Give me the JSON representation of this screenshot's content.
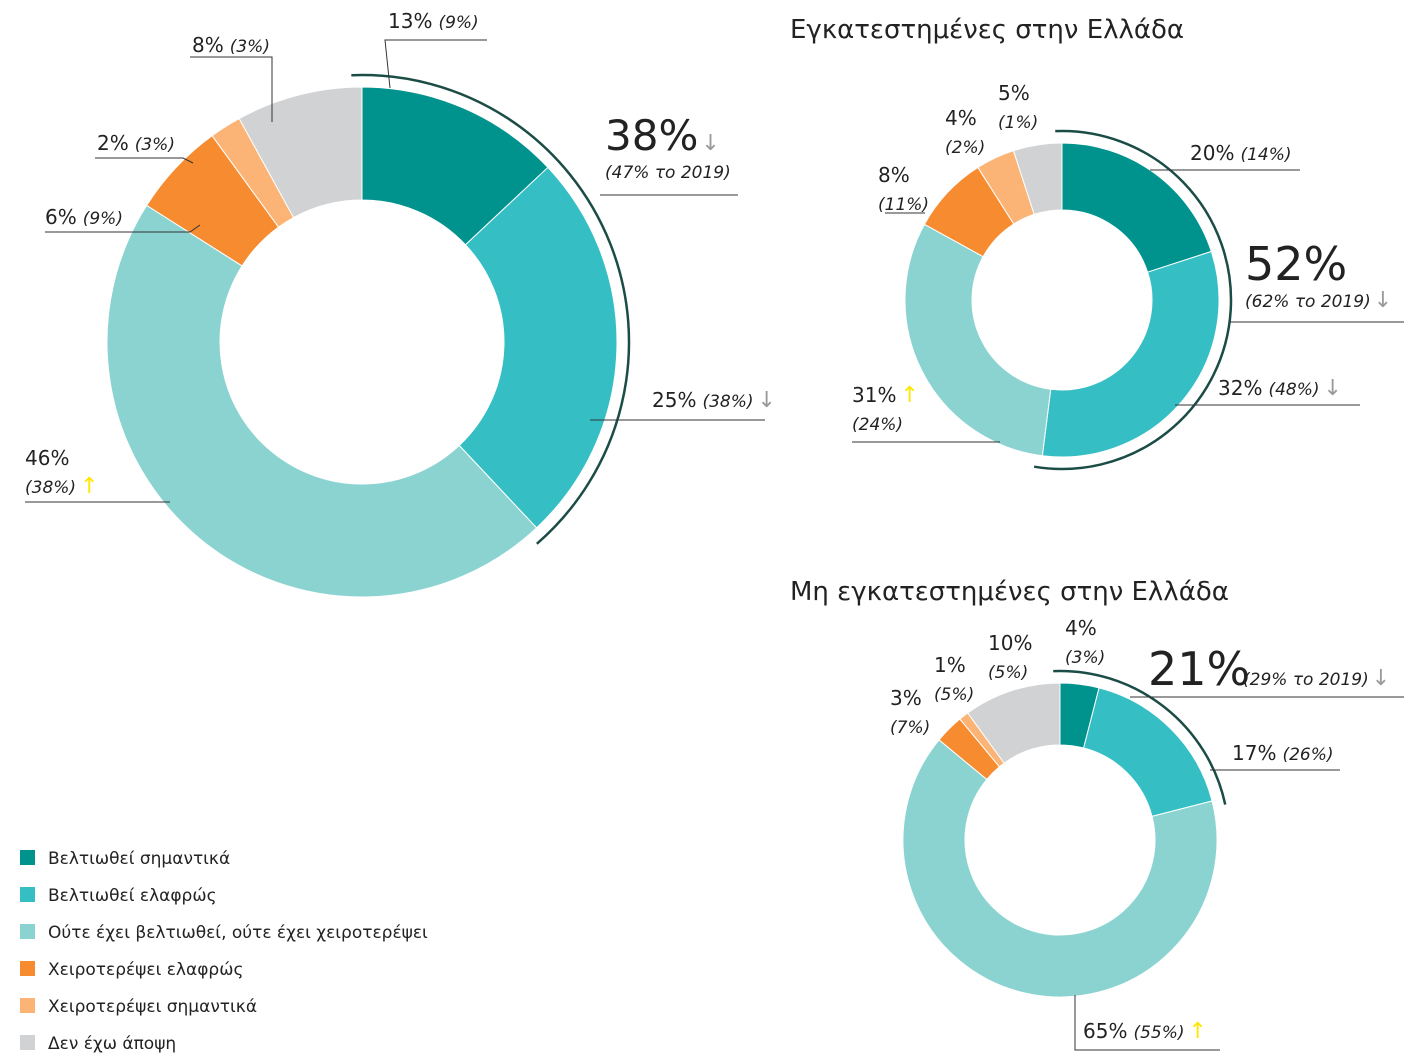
{
  "legend": {
    "labels": [
      "Βελτιωθεί σημαντικά",
      "Βελτιωθεί ελαφρώς",
      "Ούτε έχει βελτιωθεί, ούτε έχει χειροτερέψει",
      "Χειροτερέψει ελαφρώς",
      "Χειροτερέψει σημαντικά",
      "Δεν έχω άποψη"
    ],
    "colors": [
      "#00928d",
      "#35bfc4",
      "#8bd3d1",
      "#f68b30",
      "#fbb476",
      "#d1d2d4"
    ]
  },
  "arrow_colors": {
    "↑": "#ffe600",
    "↓": "#9a9a9a"
  },
  "highlight_color": "#1b4d46",
  "chart_data": [
    {
      "type": "pie",
      "donut": true,
      "values": [
        13,
        25,
        46,
        6,
        2,
        8
      ],
      "value_labels": [
        "13%",
        "25%",
        "46%",
        "6%",
        "2%",
        "8%"
      ],
      "previous_values": [
        9,
        38,
        38,
        9,
        3,
        3
      ],
      "previous_labels": [
        "(9%)",
        "(38%)",
        "(38%)",
        "(9%)",
        "(3%)",
        "(3%)"
      ],
      "arrows": [
        null,
        "↓",
        "↑",
        null,
        null,
        null
      ],
      "highlight": {
        "value": 38,
        "label": "38%",
        "note": "(47% το 2019)",
        "arrow": "↓"
      }
    },
    {
      "type": "pie",
      "donut": true,
      "title": "Εγκατεστημένες στην Ελλάδα",
      "values": [
        20,
        32,
        31,
        8,
        4,
        5
      ],
      "value_labels": [
        "20%",
        "32%",
        "31%",
        "8%",
        "4%",
        "5%"
      ],
      "previous_values": [
        14,
        48,
        24,
        11,
        2,
        1
      ],
      "previous_labels": [
        "(14%)",
        "(48%)",
        "(24%)",
        "(11%)",
        "(2%)",
        "(1%)"
      ],
      "arrows": [
        null,
        "↓",
        "↑",
        null,
        null,
        null
      ],
      "highlight": {
        "value": 52,
        "label": "52%",
        "note": "(62% το 2019)",
        "arrow": "↓"
      }
    },
    {
      "type": "pie",
      "donut": true,
      "title": "Μη εγκατεστημένες στην Ελλάδα",
      "values": [
        4,
        17,
        65,
        3,
        1,
        10
      ],
      "value_labels": [
        "4%",
        "17%",
        "65%",
        "3%",
        "1%",
        "10%"
      ],
      "previous_values": [
        3,
        26,
        55,
        7,
        5,
        5
      ],
      "previous_labels": [
        "(3%)",
        "(26%)",
        "(55%)",
        "(7%)",
        "(5%)",
        "(5%)"
      ],
      "arrows": [
        null,
        null,
        "↑",
        null,
        null,
        null
      ],
      "highlight": {
        "value": 21,
        "label": "21%",
        "note": "(29% το 2019)",
        "arrow": "↓"
      }
    }
  ]
}
